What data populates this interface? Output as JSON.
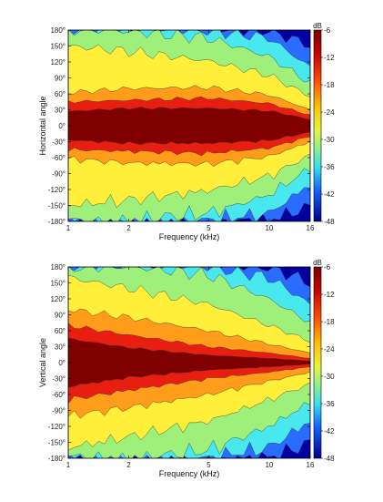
{
  "chart_data": [
    {
      "type": "heatmap",
      "title": "",
      "xlabel": "Frequency (kHz)",
      "ylabel": "Horizontal angle",
      "x_scale": "log",
      "xlim": [
        1,
        16
      ],
      "ylim": [
        -180,
        180
      ],
      "x_ticks": [
        1,
        2,
        5,
        10,
        16
      ],
      "x_tick_labels": [
        "1",
        "2",
        "5",
        "10",
        "16"
      ],
      "y_ticks": [
        180,
        150,
        120,
        90,
        60,
        30,
        0,
        -30,
        -60,
        -90,
        -120,
        -150,
        -180
      ],
      "y_tick_labels": [
        "180°",
        "150°",
        "120°",
        "90°",
        "60°",
        "30°",
        "0°",
        "-30°",
        "-60°",
        "-90°",
        "-120°",
        "-150°",
        "-180°"
      ],
      "colorbar": {
        "unit": "dB",
        "ticks": [
          -6,
          -12,
          -18,
          -24,
          -30,
          -36,
          -42,
          -48
        ],
        "tick_labels": [
          "-6",
          "-12",
          "-18",
          "-24",
          "-30",
          "-36",
          "-42",
          "-48"
        ],
        "range": [
          -48,
          -6
        ]
      },
      "contour_levels_db": [
        -6,
        -12,
        -18,
        -24,
        -30,
        -36,
        -42
      ],
      "level_colors": [
        "#800000",
        "#e81e10",
        "#ff9c1a",
        "#ffee3a",
        "#9ff07a",
        "#48e8ee",
        "#2a6cff",
        "#0000a0"
      ],
      "frequency_khz": [
        1,
        2,
        5,
        10,
        16
      ],
      "contour_half_width_deg": [
        {
          "level_db": -6,
          "at_frequency": [
            27,
            33,
            33,
            28,
            12
          ]
        },
        {
          "level_db": -12,
          "at_frequency": [
            45,
            48,
            52,
            42,
            20
          ]
        },
        {
          "level_db": -18,
          "at_frequency": [
            62,
            70,
            72,
            58,
            30
          ]
        },
        {
          "level_db": -24,
          "at_frequency": [
            150,
            140,
            122,
            95,
            55
          ]
        },
        {
          "level_db": -30,
          "at_frequency": [
            181,
            178,
            165,
            130,
            80
          ]
        },
        {
          "level_db": -36,
          "at_frequency": [
            181,
            181,
            181,
            165,
            110
          ]
        },
        {
          "level_db": -42,
          "at_frequency": [
            181,
            181,
            181,
            181,
            150
          ]
        }
      ]
    },
    {
      "type": "heatmap",
      "title": "",
      "xlabel": "Frequency (kHz)",
      "ylabel": "Vertical angle",
      "x_scale": "log",
      "xlim": [
        1,
        16
      ],
      "ylim": [
        -180,
        180
      ],
      "x_ticks": [
        1,
        2,
        5,
        10,
        16
      ],
      "x_tick_labels": [
        "1",
        "2",
        "5",
        "10",
        "16"
      ],
      "y_ticks": [
        180,
        150,
        120,
        90,
        60,
        30,
        0,
        -30,
        -60,
        -90,
        -120,
        -150,
        -180
      ],
      "y_tick_labels": [
        "180°",
        "150°",
        "120°",
        "90°",
        "60°",
        "30°",
        "0°",
        "-30°",
        "-60°",
        "-90°",
        "-120°",
        "-150°",
        "-180°"
      ],
      "colorbar": {
        "unit": "dB",
        "ticks": [
          -6,
          -12,
          -18,
          -24,
          -30,
          -36,
          -42,
          -48
        ],
        "tick_labels": [
          "-6",
          "-12",
          "-18",
          "-24",
          "-30",
          "-36",
          "-42",
          "-48"
        ],
        "range": [
          -48,
          -6
        ]
      },
      "contour_levels_db": [
        -6,
        -12,
        -18,
        -24,
        -30,
        -36,
        -42
      ],
      "level_colors": [
        "#800000",
        "#e81e10",
        "#ff9c1a",
        "#ffee3a",
        "#9ff07a",
        "#48e8ee",
        "#2a6cff",
        "#0000a0"
      ],
      "frequency_khz": [
        1,
        2,
        5,
        10,
        16
      ],
      "contour_half_width_deg": [
        {
          "level_db": -6,
          "at_frequency": [
            45,
            28,
            14,
            8,
            3
          ]
        },
        {
          "level_db": -12,
          "at_frequency": [
            70,
            52,
            30,
            18,
            8
          ]
        },
        {
          "level_db": -18,
          "at_frequency": [
            100,
            85,
            60,
            35,
            18
          ]
        },
        {
          "level_db": -24,
          "at_frequency": [
            160,
            140,
            110,
            70,
            40
          ]
        },
        {
          "level_db": -30,
          "at_frequency": [
            181,
            181,
            165,
            120,
            75
          ]
        },
        {
          "level_db": -36,
          "at_frequency": [
            181,
            181,
            181,
            160,
            110
          ]
        },
        {
          "level_db": -42,
          "at_frequency": [
            181,
            181,
            181,
            181,
            150
          ]
        }
      ]
    }
  ]
}
